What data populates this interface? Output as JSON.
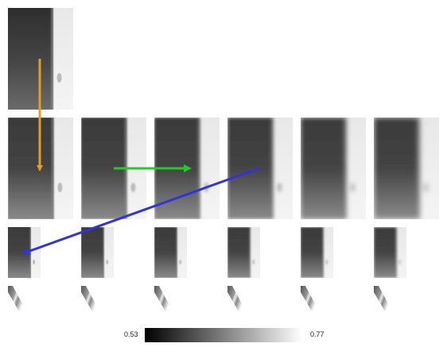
{
  "colorbar": {
    "min_label": "0.53",
    "max_label": "0.77",
    "colormap": "gray",
    "min_color": "#000000",
    "max_color": "#ffffff"
  },
  "grid": {
    "rows": [
      {
        "count": 1,
        "tile_style": "input"
      },
      {
        "count": 6,
        "tile_style": "blur"
      },
      {
        "count": 6,
        "tile_style": "blur"
      },
      {
        "count": 6,
        "tile_style": "edge"
      }
    ]
  },
  "arrows": [
    {
      "name": "orange-arrow",
      "color": "#e0a020",
      "from": "row0-col0",
      "to": "row1-col0"
    },
    {
      "name": "green-arrow",
      "color": "#22cc22",
      "from": "row1-col1",
      "to": "row1-col2"
    },
    {
      "name": "blue-arrow",
      "color": "#3333dd",
      "from": "row1-col3",
      "to": "row2-col0"
    }
  ]
}
